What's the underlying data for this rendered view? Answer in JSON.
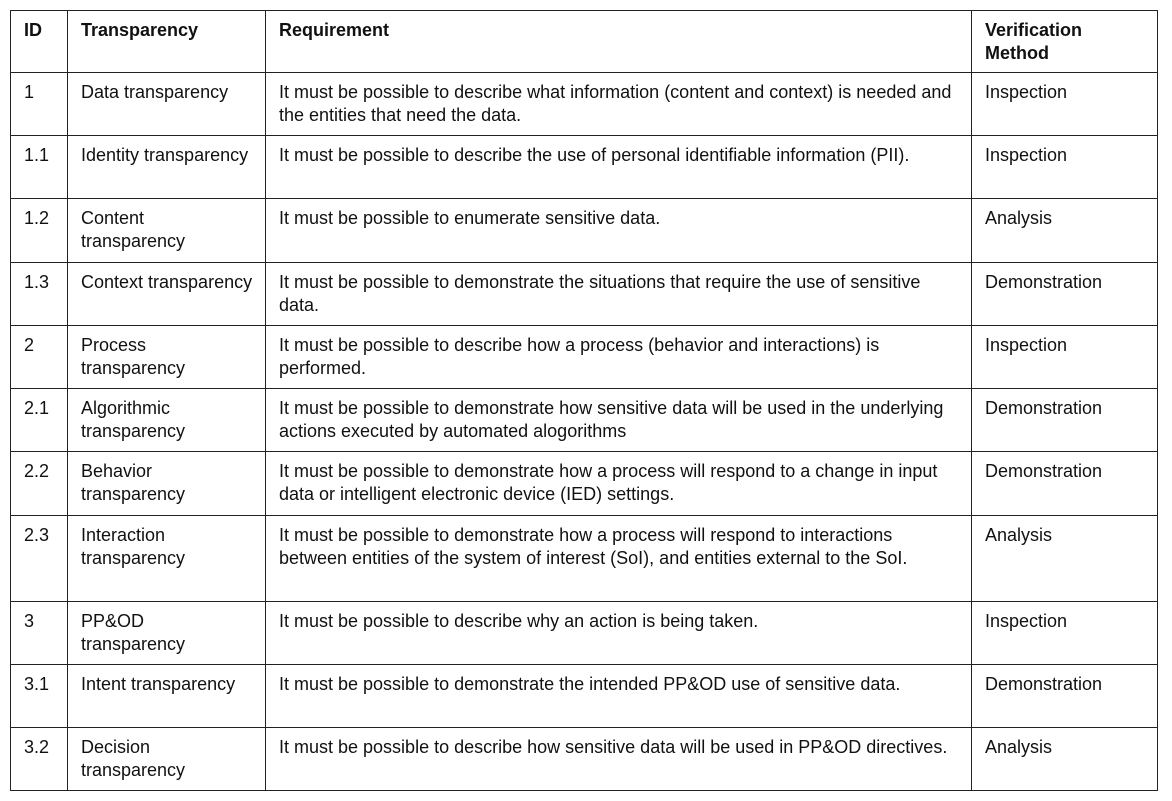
{
  "table": {
    "header": [
      "ID",
      "Transparency",
      "Requirement",
      "Verification Method"
    ],
    "rows": [
      [
        "1",
        "Data transparency",
        "It must be possible to describe what information (content and context) is needed and the entities that need the data.",
        "Inspection"
      ],
      [
        "1.1",
        "Identity transparency",
        "It must be possible to describe the use of personal identifiable information (PII).",
        "Inspection"
      ],
      [
        "1.2",
        "Content transparency",
        "It must be possible to enumerate sensitive data.",
        "Analysis"
      ],
      [
        "1.3",
        "Context transparency",
        "It must be possible to demonstrate the situations that require the use of sensitive data.",
        "Demonstration"
      ],
      [
        "2",
        "Process transparency",
        "It must be possible to describe how a process (behavior and interactions) is performed.",
        "Inspection"
      ],
      [
        "2.1",
        "Algorithmic transparency",
        "It must be possible to demonstrate how sensitive data will be used in the underlying actions executed by automated alogorithms",
        "Demonstration"
      ],
      [
        "2.2",
        "Behavior transparency",
        "It must be possible to demonstrate how a process will respond to a change in input data or intelligent electronic device (IED) settings.",
        "Demonstration"
      ],
      [
        "2.3",
        "Interaction transparency",
        "It must be possible to demonstrate how a process will respond to interactions between entities of the system of interest (SoI), and entities external to the SoI.",
        "Analysis"
      ],
      [
        "3",
        "PP&OD transparency",
        "It must be possible to describe why an action is being taken.",
        "Inspection"
      ],
      [
        "3.1",
        "Intent transparency",
        "It must be possible to demonstrate the intended PP&OD use of sensitive data.",
        "Demonstration"
      ],
      [
        "3.2",
        "Decision transparency",
        "It must be possible to describe how sensitive data will be used in PP&OD directives.",
        "Analysis"
      ]
    ]
  }
}
